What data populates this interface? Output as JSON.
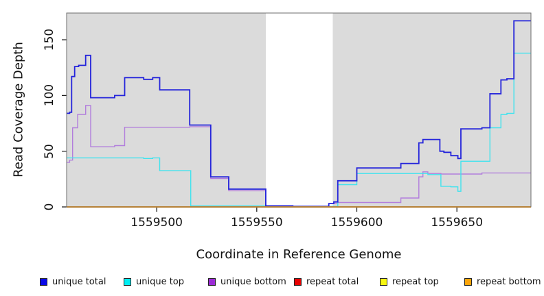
{
  "chart_data": {
    "type": "line",
    "subtype": "step",
    "title": "",
    "xlabel": "Coordinate in Reference Genome",
    "ylabel": "Read Coverage Depth",
    "xlim": [
      1559455,
      1559687
    ],
    "ylim": [
      0,
      174
    ],
    "x_ticks": [
      1559500,
      1559550,
      1559600,
      1559650
    ],
    "y_ticks": [
      0,
      50,
      100,
      150
    ],
    "grid": false,
    "legend_position": "bottom",
    "plot_background_color": "#DBDBDB",
    "masked_region": {
      "x_start": 1559554.5,
      "x_end": 1559588,
      "color": "#FFFFFF"
    },
    "series": [
      {
        "name": "unique total",
        "line_color": "#2424DB",
        "legend_color": "#0909E8",
        "stroke_width": 1.8,
        "points": [
          [
            1559455,
            84
          ],
          [
            1559456.5,
            85
          ],
          [
            1559457.5,
            117
          ],
          [
            1559459,
            126
          ],
          [
            1559461,
            127
          ],
          [
            1559464.5,
            136
          ],
          [
            1559467,
            98
          ],
          [
            1559479,
            100
          ],
          [
            1559484,
            116
          ],
          [
            1559493.5,
            114.5
          ],
          [
            1559498,
            116
          ],
          [
            1559501.5,
            105
          ],
          [
            1559516.5,
            73.5
          ],
          [
            1559527,
            27
          ],
          [
            1559536,
            16
          ],
          [
            1559554.5,
            1
          ],
          [
            1559568,
            0.5
          ],
          [
            1559586,
            3
          ],
          [
            1559588.5,
            4.5
          ],
          [
            1559590.5,
            23.5
          ],
          [
            1559600,
            35
          ],
          [
            1559622,
            39
          ],
          [
            1559631,
            57.5
          ],
          [
            1559633,
            60.5
          ],
          [
            1559641.5,
            50
          ],
          [
            1559643.5,
            49
          ],
          [
            1559647,
            46
          ],
          [
            1559650.5,
            43.5
          ],
          [
            1559652,
            70
          ],
          [
            1559662.5,
            71
          ],
          [
            1559666.5,
            101.5
          ],
          [
            1559672,
            114
          ],
          [
            1559675,
            115
          ],
          [
            1559678.5,
            167
          ]
        ]
      },
      {
        "name": "unique top",
        "line_color": "#3FE3EE",
        "legend_color": "#00EDF2",
        "stroke_width": 1.4,
        "points": [
          [
            1559455,
            44
          ],
          [
            1559493.5,
            43.5
          ],
          [
            1559498,
            44
          ],
          [
            1559501.5,
            32.5
          ],
          [
            1559517,
            1
          ],
          [
            1559554.5,
            0.5
          ],
          [
            1559590.5,
            20
          ],
          [
            1559600,
            30
          ],
          [
            1559635.5,
            29
          ],
          [
            1559642,
            18.5
          ],
          [
            1559647,
            18
          ],
          [
            1559650.5,
            14
          ],
          [
            1559652,
            41
          ],
          [
            1559666.5,
            71
          ],
          [
            1559672,
            83
          ],
          [
            1559675,
            84
          ],
          [
            1559678.5,
            138
          ]
        ]
      },
      {
        "name": "unique bottom",
        "line_color": "#B27EDC",
        "legend_color": "#9C2BD6",
        "stroke_width": 1.4,
        "points": [
          [
            1559455,
            40
          ],
          [
            1559456.5,
            42
          ],
          [
            1559458,
            71
          ],
          [
            1559460.5,
            83
          ],
          [
            1559464.5,
            91
          ],
          [
            1559467,
            54
          ],
          [
            1559479,
            55
          ],
          [
            1559484,
            71.5
          ],
          [
            1559516.5,
            72
          ],
          [
            1559527,
            25.5
          ],
          [
            1559536,
            14.5
          ],
          [
            1559554.5,
            0.5
          ],
          [
            1559586,
            3
          ],
          [
            1559590.5,
            4
          ],
          [
            1559622,
            8
          ],
          [
            1559631,
            27
          ],
          [
            1559633,
            31.5
          ],
          [
            1559635.5,
            30
          ],
          [
            1559642,
            29.5
          ],
          [
            1559662.5,
            30.5
          ]
        ]
      },
      {
        "name": "repeat total",
        "line_color": "#E00202",
        "legend_color": "#E80202",
        "stroke_width": 1.5,
        "points": [
          [
            1559455,
            0
          ]
        ]
      },
      {
        "name": "repeat top",
        "line_color": "#F7F711",
        "legend_color": "#F7F711",
        "stroke_width": 1.5,
        "points": [
          [
            1559455,
            0
          ]
        ]
      },
      {
        "name": "repeat bottom",
        "line_color": "#FF9400",
        "legend_color": "#FCA40A",
        "stroke_width": 2,
        "points": [
          [
            1559455,
            0
          ]
        ]
      }
    ]
  }
}
